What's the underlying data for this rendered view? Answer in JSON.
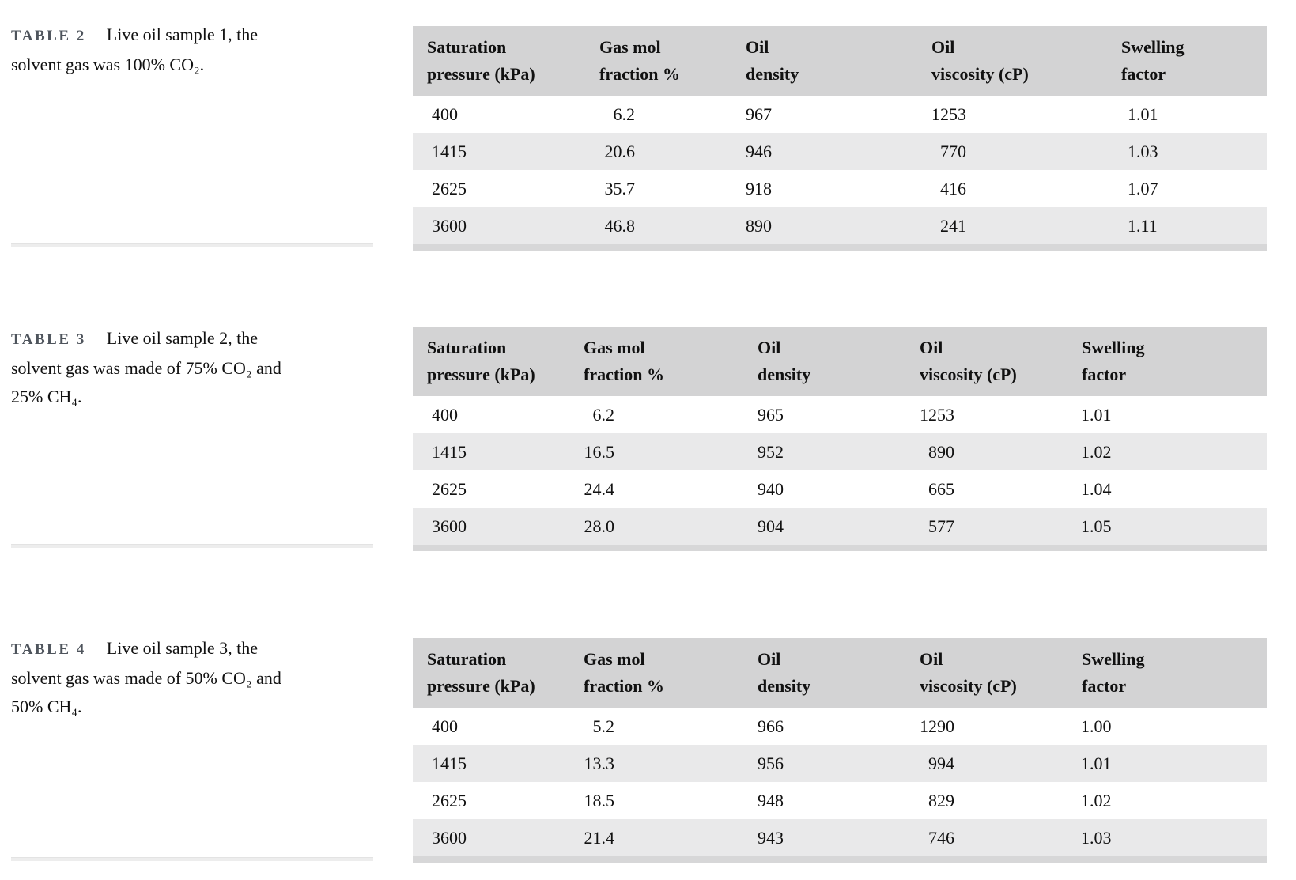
{
  "colors": {
    "header_bg": "#d3d3d4",
    "row_alt_bg": "#e9e9ea",
    "table_bottom_bar": "#d7d7d8",
    "caption_label": "#4e545c",
    "caption_divider": "#ededed",
    "text": "#111111"
  },
  "tables": [
    {
      "label": "TABLE 2",
      "caption": "Live oil sample 1, the\nsolvent gas was 100% CO₂.",
      "headers": [
        "Saturation\npressure (kPa)",
        "Gas mol\nfraction %",
        "Oil\ndensity",
        "Oil\nviscosity (cP)",
        "Swelling\nfactor"
      ],
      "rows": [
        [
          "400",
          "6.2",
          "967",
          "1253",
          "1.01"
        ],
        [
          "1415",
          "20.6",
          "946",
          "770",
          "1.03"
        ],
        [
          "2625",
          "35.7",
          "918",
          "416",
          "1.07"
        ],
        [
          "3600",
          "46.8",
          "890",
          "241",
          "1.11"
        ]
      ]
    },
    {
      "label": "TABLE 3",
      "caption": "Live oil sample 2, the\nsolvent gas was made of 75% CO₂ and\n25% CH₄.",
      "headers": [
        "Saturation\npressure (kPa)",
        "Gas mol\nfraction %",
        "Oil\ndensity",
        "Oil\nviscosity (cP)",
        "Swelling\nfactor"
      ],
      "rows": [
        [
          "400",
          "6.2",
          "965",
          "1253",
          "1.01"
        ],
        [
          "1415",
          "16.5",
          "952",
          "890",
          "1.02"
        ],
        [
          "2625",
          "24.4",
          "940",
          "665",
          "1.04"
        ],
        [
          "3600",
          "28.0",
          "904",
          "577",
          "1.05"
        ]
      ]
    },
    {
      "label": "TABLE 4",
      "caption": "Live oil sample 3, the\nsolvent gas was made of 50% CO₂ and\n50% CH₄.",
      "headers": [
        "Saturation\npressure (kPa)",
        "Gas mol\nfraction %",
        "Oil\ndensity",
        "Oil\nviscosity (cP)",
        "Swelling\nfactor"
      ],
      "rows": [
        [
          "400",
          "5.2",
          "966",
          "1290",
          "1.00"
        ],
        [
          "1415",
          "13.3",
          "956",
          "994",
          "1.01"
        ],
        [
          "2625",
          "18.5",
          "948",
          "829",
          "1.02"
        ],
        [
          "3600",
          "21.4",
          "943",
          "746",
          "1.03"
        ]
      ]
    }
  ]
}
